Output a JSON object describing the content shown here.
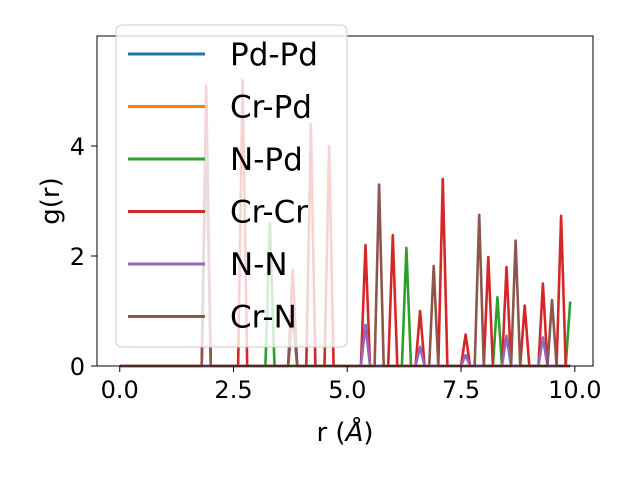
{
  "chart_data": {
    "type": "line",
    "title": "",
    "xlabel": "r (",
    "xlabel_unit": "Å",
    "xlabel_close": ")",
    "ylabel": "g(r)",
    "xlim": [
      -0.5,
      10.4
    ],
    "ylim": [
      0,
      6.0
    ],
    "xticks": [
      0.0,
      2.5,
      5.0,
      7.5,
      10.0
    ],
    "xtick_labels": [
      "0.0",
      "2.5",
      "5.0",
      "7.5",
      "10.0"
    ],
    "yticks": [
      0,
      2,
      4
    ],
    "ytick_labels": [
      "0",
      "2",
      "4"
    ],
    "grid": false,
    "legend_position": "top-left",
    "series": [
      {
        "name": "Pd-Pd",
        "color": "#1f77b4",
        "x": [
          0.0,
          9.9
        ],
        "y": [
          0.0,
          0.0
        ]
      },
      {
        "name": "Cr-Pd",
        "color": "#ff7f0e",
        "x": [
          0.0,
          9.9
        ],
        "y": [
          0.0,
          0.0
        ]
      },
      {
        "name": "N-Pd",
        "color": "#2ca02c",
        "x": [
          0.0,
          3.2,
          3.3,
          3.4,
          6.2,
          6.3,
          6.4,
          8.2,
          8.3,
          8.4,
          9.8,
          9.9
        ],
        "y": [
          0.0,
          0.0,
          2.6,
          0.0,
          0.0,
          2.15,
          0.0,
          0.0,
          1.25,
          0.0,
          0.0,
          1.17
        ]
      },
      {
        "name": "Cr-Cr",
        "color": "#d62728",
        "x": [
          0.0,
          1.8,
          1.9,
          2.0,
          2.6,
          2.7,
          2.8,
          3.7,
          3.8,
          3.9,
          4.1,
          4.2,
          4.3,
          4.5,
          4.6,
          4.7,
          5.3,
          5.4,
          5.5,
          5.9,
          6.0,
          6.1,
          6.5,
          6.6,
          6.7,
          7.0,
          7.1,
          7.2,
          7.5,
          7.6,
          7.7,
          8.0,
          8.1,
          8.2,
          8.4,
          8.5,
          8.6,
          8.8,
          8.9,
          9.0,
          9.2,
          9.3,
          9.4,
          9.6,
          9.7,
          9.8,
          9.9
        ],
        "y": [
          0.0,
          0.0,
          5.1,
          0.0,
          0.0,
          5.2,
          0.0,
          0.0,
          1.75,
          0.0,
          0.0,
          4.4,
          0.0,
          0.0,
          4.0,
          0.0,
          0.0,
          2.2,
          0.0,
          0.0,
          2.38,
          0.0,
          0.0,
          1.0,
          0.0,
          0.0,
          3.4,
          0.0,
          0.0,
          0.57,
          0.0,
          0.0,
          1.98,
          0.0,
          0.0,
          1.8,
          0.0,
          0.0,
          1.1,
          0.0,
          0.0,
          1.5,
          0.0,
          0.0,
          2.73,
          0.0,
          0.0
        ]
      },
      {
        "name": "N-N",
        "color": "#9467bd",
        "x": [
          0.0,
          3.7,
          3.8,
          3.9,
          5.3,
          5.4,
          5.5,
          6.5,
          6.6,
          6.7,
          7.5,
          7.6,
          7.7,
          8.4,
          8.5,
          8.6,
          9.2,
          9.3,
          9.4,
          9.9
        ],
        "y": [
          0.0,
          0.0,
          0.95,
          0.0,
          0.0,
          0.75,
          0.0,
          0.0,
          0.35,
          0.0,
          0.0,
          0.2,
          0.0,
          0.0,
          0.55,
          0.0,
          0.0,
          0.52,
          0.0,
          0.0
        ]
      },
      {
        "name": "Cr-N",
        "color": "#8c564b",
        "x": [
          0.0,
          1.8,
          1.9,
          2.0,
          3.7,
          3.8,
          3.9,
          5.6,
          5.7,
          5.8,
          6.8,
          6.9,
          7.0,
          7.8,
          7.9,
          8.0,
          8.6,
          8.7,
          8.8,
          9.4,
          9.5,
          9.6,
          9.9
        ],
        "y": [
          0.0,
          0.0,
          4.3,
          0.0,
          0.0,
          1.0,
          0.0,
          0.0,
          3.3,
          0.0,
          0.0,
          1.82,
          0.0,
          0.0,
          2.75,
          0.0,
          0.0,
          2.28,
          0.0,
          0.0,
          1.2,
          0.0,
          0.0
        ]
      }
    ]
  }
}
